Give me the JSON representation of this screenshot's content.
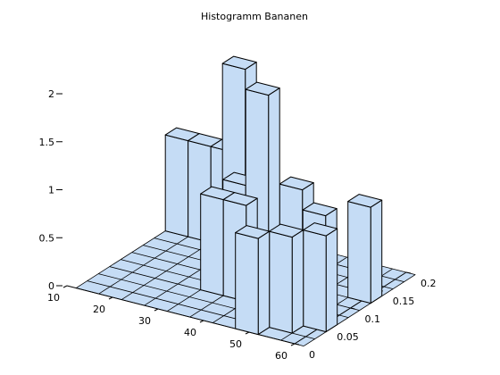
{
  "chart_data": {
    "type": "bar3d",
    "title": "Histogramm Bananen",
    "xlabel": "",
    "ylabel": "",
    "zlabel": "",
    "x_range": [
      10,
      60
    ],
    "y_range": [
      0,
      0.2
    ],
    "z_range": [
      0,
      2
    ],
    "x_ticks": [
      "10",
      "20",
      "30",
      "40",
      "50",
      "60"
    ],
    "y_ticks": [
      "0",
      "0.05",
      "0.1",
      "0.15",
      "0.2"
    ],
    "z_ticks": [
      "0",
      "0.5",
      "1",
      "1.5",
      "2"
    ],
    "x_bin_edges": [
      12,
      17,
      22,
      27,
      32,
      37,
      42,
      47,
      52,
      57
    ],
    "y_bin_edges": [
      0.0,
      0.02,
      0.04,
      0.06,
      0.08,
      0.1,
      0.12,
      0.14,
      0.16,
      0.18
    ],
    "bars": [
      {
        "x": 12,
        "y": 0.16,
        "value": 1
      },
      {
        "x": 17,
        "y": 0.16,
        "value": 1
      },
      {
        "x": 22,
        "y": 0.16,
        "value": 1
      },
      {
        "x": 27,
        "y": 0.14,
        "value": 2
      },
      {
        "x": 37,
        "y": 0.1,
        "value": 2
      },
      {
        "x": 42,
        "y": 0.12,
        "value": 1
      },
      {
        "x": 32,
        "y": 0.1,
        "value": 1
      },
      {
        "x": 37,
        "y": 0.06,
        "value": 1
      },
      {
        "x": 32,
        "y": 0.06,
        "value": 1
      },
      {
        "x": 47,
        "y": 0.0,
        "value": 1
      },
      {
        "x": 52,
        "y": 0.02,
        "value": 1
      },
      {
        "x": 52,
        "y": 0.08,
        "value": 1
      },
      {
        "x": 57,
        "y": 0.04,
        "value": 1
      },
      {
        "x": 57,
        "y": 0.12,
        "value": 1
      }
    ],
    "grid": true,
    "legend": "none"
  }
}
